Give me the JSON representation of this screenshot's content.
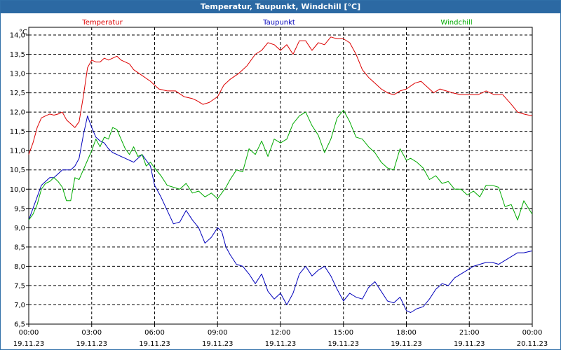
{
  "window": {
    "title": "Temperatur, Taupunkt, Windchill [°C]"
  },
  "chart_data": {
    "type": "line",
    "title": "Temperatur, Taupunkt, Windchill [°C]",
    "y_unit_label": "°C",
    "ylim": [
      6.5,
      14.2
    ],
    "yticks": [
      6.5,
      7.0,
      7.5,
      8.0,
      8.5,
      9.0,
      9.5,
      10.0,
      10.5,
      11.0,
      11.5,
      12.0,
      12.5,
      13.0,
      13.5,
      14.0
    ],
    "ytick_labels": [
      "6,5",
      "7,0",
      "7,5",
      "8,0",
      "8,5",
      "9,0",
      "9,5",
      "10,0",
      "10,5",
      "11,0",
      "11,5",
      "12,0",
      "12,5",
      "13,0",
      "13,5",
      "14,0"
    ],
    "xlim": [
      0,
      24
    ],
    "xticks": [
      {
        "x": 0,
        "time": "00:00",
        "date": "19.11.23"
      },
      {
        "x": 3,
        "time": "03:00",
        "date": "19.11.23"
      },
      {
        "x": 6,
        "time": "06:00",
        "date": "19.11.23"
      },
      {
        "x": 9,
        "time": "09:00",
        "date": "19.11.23"
      },
      {
        "x": 12,
        "time": "12:00",
        "date": "19.11.23"
      },
      {
        "x": 15,
        "time": "15:00",
        "date": "19.11.23"
      },
      {
        "x": 18,
        "time": "18:00",
        "date": "19.11.23"
      },
      {
        "x": 21,
        "time": "21:00",
        "date": "19.11.23"
      },
      {
        "x": 24,
        "time": "00:00",
        "date": "20.11.23"
      }
    ],
    "grid": true,
    "legend_placement": "top",
    "series": [
      {
        "name": "Temperatur",
        "color": "#dd0000",
        "x": [
          0,
          0.2,
          0.4,
          0.6,
          0.8,
          1.0,
          1.2,
          1.4,
          1.6,
          1.8,
          2.0,
          2.2,
          2.4,
          2.6,
          2.8,
          3.0,
          3.2,
          3.4,
          3.6,
          3.8,
          4.0,
          4.2,
          4.4,
          4.6,
          4.8,
          5.0,
          5.4,
          5.8,
          6.2,
          6.6,
          7.0,
          7.4,
          7.8,
          8.0,
          8.3,
          8.6,
          9.0,
          9.3,
          9.6,
          10.0,
          10.4,
          10.8,
          11.1,
          11.4,
          11.7,
          12.0,
          12.3,
          12.6,
          12.9,
          13.2,
          13.5,
          13.8,
          14.1,
          14.4,
          14.7,
          15.0,
          15.3,
          15.6,
          15.9,
          16.2,
          16.5,
          16.8,
          17.1,
          17.4,
          17.7,
          18.0,
          18.4,
          18.7,
          19.0,
          19.3,
          19.6,
          19.9,
          20.2,
          20.6,
          21.0,
          21.4,
          21.8,
          22.2,
          22.6,
          23.0,
          23.3,
          23.6,
          24.0
        ],
        "y": [
          10.9,
          11.2,
          11.6,
          11.85,
          11.9,
          11.95,
          11.92,
          11.95,
          12.0,
          11.8,
          11.7,
          11.6,
          11.75,
          12.4,
          13.15,
          13.35,
          13.3,
          13.3,
          13.4,
          13.35,
          13.4,
          13.45,
          13.35,
          13.3,
          13.25,
          13.1,
          12.95,
          12.8,
          12.6,
          12.55,
          12.55,
          12.4,
          12.35,
          12.3,
          12.2,
          12.25,
          12.4,
          12.7,
          12.85,
          13.0,
          13.2,
          13.5,
          13.6,
          13.8,
          13.75,
          13.6,
          13.75,
          13.5,
          13.85,
          13.85,
          13.6,
          13.8,
          13.75,
          13.95,
          13.9,
          13.9,
          13.8,
          13.5,
          13.1,
          12.9,
          12.75,
          12.6,
          12.5,
          12.45,
          12.55,
          12.6,
          12.75,
          12.8,
          12.65,
          12.5,
          12.6,
          12.55,
          12.5,
          12.45,
          12.45,
          12.45,
          12.55,
          12.45,
          12.45,
          12.2,
          12.0,
          11.95,
          11.9
        ]
      },
      {
        "name": "Taupunkt",
        "color": "#0000bb",
        "x": [
          0,
          0.2,
          0.4,
          0.6,
          0.8,
          1.0,
          1.2,
          1.4,
          1.6,
          1.8,
          2.0,
          2.2,
          2.4,
          2.6,
          2.8,
          3.0,
          3.2,
          3.4,
          3.6,
          3.8,
          4.0,
          4.2,
          4.4,
          4.6,
          4.8,
          5.0,
          5.2,
          5.4,
          5.6,
          5.8,
          6.0,
          6.3,
          6.6,
          6.9,
          7.2,
          7.5,
          7.8,
          8.1,
          8.4,
          8.7,
          9.0,
          9.2,
          9.4,
          9.6,
          9.9,
          10.2,
          10.5,
          10.8,
          11.1,
          11.4,
          11.7,
          12.0,
          12.3,
          12.6,
          12.9,
          13.2,
          13.5,
          13.8,
          14.1,
          14.4,
          14.7,
          15.0,
          15.3,
          15.6,
          15.9,
          16.2,
          16.5,
          16.8,
          17.1,
          17.4,
          17.7,
          18.0,
          18.2,
          18.5,
          18.8,
          19.1,
          19.4,
          19.7,
          20.0,
          20.3,
          20.6,
          20.9,
          21.2,
          21.5,
          21.8,
          22.1,
          22.4,
          22.7,
          23.0,
          23.3,
          23.6,
          24.0
        ],
        "y": [
          9.2,
          9.5,
          9.8,
          10.1,
          10.2,
          10.3,
          10.3,
          10.4,
          10.5,
          10.5,
          10.5,
          10.6,
          10.8,
          11.4,
          11.9,
          11.6,
          11.35,
          11.25,
          11.2,
          11.05,
          10.95,
          10.9,
          10.85,
          10.8,
          10.75,
          10.7,
          10.8,
          10.9,
          10.75,
          10.6,
          10.1,
          9.8,
          9.45,
          9.1,
          9.15,
          9.45,
          9.2,
          9.0,
          8.6,
          8.75,
          9.0,
          8.9,
          8.5,
          8.3,
          8.05,
          8.0,
          7.8,
          7.55,
          7.8,
          7.35,
          7.15,
          7.3,
          7.0,
          7.3,
          7.8,
          8.0,
          7.75,
          7.9,
          8.0,
          7.75,
          7.4,
          7.1,
          7.3,
          7.2,
          7.15,
          7.45,
          7.6,
          7.35,
          7.1,
          7.05,
          7.2,
          6.85,
          6.8,
          6.9,
          6.95,
          7.15,
          7.4,
          7.55,
          7.5,
          7.7,
          7.8,
          7.9,
          8.0,
          8.05,
          8.1,
          8.1,
          8.05,
          8.15,
          8.25,
          8.35,
          8.35,
          8.4
        ]
      },
      {
        "name": "Windchill",
        "color": "#00aa00",
        "x": [
          0,
          0.2,
          0.4,
          0.6,
          0.8,
          1.0,
          1.2,
          1.4,
          1.6,
          1.8,
          2.0,
          2.2,
          2.4,
          2.6,
          2.8,
          3.0,
          3.2,
          3.4,
          3.6,
          3.8,
          4.0,
          4.2,
          4.4,
          4.6,
          4.8,
          5.0,
          5.2,
          5.4,
          5.6,
          5.8,
          6.0,
          6.3,
          6.6,
          6.9,
          7.2,
          7.5,
          7.8,
          8.1,
          8.4,
          8.7,
          9.0,
          9.2,
          9.4,
          9.6,
          9.9,
          10.2,
          10.5,
          10.8,
          11.1,
          11.4,
          11.7,
          12.0,
          12.3,
          12.6,
          12.9,
          13.2,
          13.5,
          13.8,
          14.1,
          14.4,
          14.7,
          15.0,
          15.3,
          15.6,
          15.9,
          16.2,
          16.5,
          16.8,
          17.1,
          17.4,
          17.7,
          18.0,
          18.2,
          18.5,
          18.8,
          19.1,
          19.4,
          19.7,
          20.0,
          20.3,
          20.6,
          20.9,
          21.2,
          21.5,
          21.8,
          22.1,
          22.4,
          22.7,
          23.0,
          23.3,
          23.6,
          24.0
        ],
        "y": [
          9.2,
          9.35,
          9.6,
          10.0,
          10.15,
          10.2,
          10.3,
          10.2,
          10.05,
          9.7,
          9.7,
          10.3,
          10.25,
          10.5,
          10.75,
          11.0,
          11.3,
          11.1,
          11.35,
          11.3,
          11.6,
          11.55,
          11.3,
          11.05,
          10.9,
          11.1,
          10.85,
          10.9,
          10.6,
          10.7,
          10.55,
          10.35,
          10.1,
          10.05,
          10.0,
          10.15,
          9.9,
          9.95,
          9.8,
          9.9,
          9.75,
          9.9,
          10.05,
          10.25,
          10.5,
          10.45,
          11.05,
          10.9,
          11.25,
          10.85,
          11.3,
          11.2,
          11.3,
          11.7,
          11.9,
          12.0,
          11.65,
          11.4,
          10.95,
          11.3,
          11.85,
          12.05,
          11.75,
          11.35,
          11.3,
          11.1,
          10.95,
          10.7,
          10.55,
          10.5,
          11.05,
          10.75,
          10.8,
          10.7,
          10.55,
          10.25,
          10.35,
          10.15,
          10.2,
          10.0,
          10.0,
          9.85,
          9.95,
          9.8,
          10.1,
          10.1,
          10.05,
          9.55,
          9.6,
          9.2,
          9.7,
          9.35
        ]
      }
    ]
  }
}
